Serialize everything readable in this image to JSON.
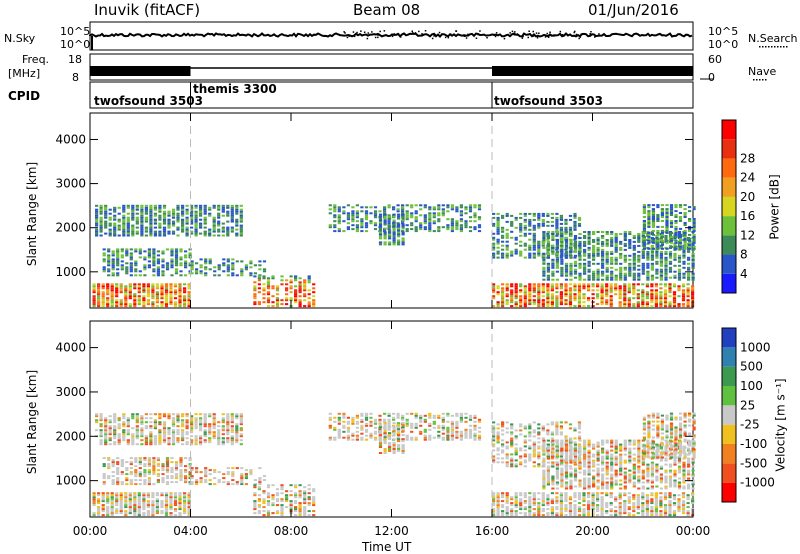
{
  "header": {
    "title_left": "Inuvik (fitACF)",
    "title_center": "Beam 08",
    "title_right": "01/Jun/2016"
  },
  "strips": {
    "nsky_label": "N.Sky",
    "nsky_ticks": [
      "10^5",
      "10^0"
    ],
    "nsearch_label": "N.Search",
    "nsearch_ticks": [
      "10^5",
      "10^0"
    ],
    "freq_label": "Freq.",
    "freq_unit": "[MHz]",
    "freq_ticks": [
      "18",
      "8"
    ],
    "nave_label": "Nave",
    "nave_ticks": [
      "60",
      "0"
    ],
    "cpid_label": "CPID",
    "cpid_segments": [
      {
        "name": "twofsound 3503",
        "start_h": 0,
        "end_h": 4
      },
      {
        "name": "themis 3300",
        "start_h": 4,
        "end_h": 16
      },
      {
        "name": "twofsound 3503",
        "start_h": 16,
        "end_h": 24
      }
    ]
  },
  "chart_data": [
    {
      "type": "heatmap",
      "title": "Power",
      "xlabel": "Time UT",
      "ylabel": "Slant Range [km]",
      "x_ticks": [
        "00:00",
        "04:00",
        "08:00",
        "12:00",
        "16:00",
        "20:00",
        "00:00"
      ],
      "xlim": [
        0,
        24
      ],
      "y_ticks": [
        "1000",
        "2000",
        "3000",
        "4000"
      ],
      "ylim": [
        180,
        4600
      ],
      "colorbar": {
        "label": "Power [dB]",
        "ticks": [
          "4",
          "8",
          "12",
          "16",
          "20",
          "24",
          "28"
        ],
        "range": [
          0,
          30
        ],
        "colors": [
          "#1a1aff",
          "#2a55c8",
          "#3c8a58",
          "#6cc03a",
          "#d6d620",
          "#f0a020",
          "#ff6a10",
          "#e83010",
          "#ff0000"
        ]
      }
    },
    {
      "type": "heatmap",
      "title": "Velocity",
      "xlabel": "Time UT",
      "ylabel": "Slant Range [km]",
      "x_ticks": [
        "00:00",
        "04:00",
        "08:00",
        "12:00",
        "16:00",
        "20:00",
        "00:00"
      ],
      "xlim": [
        0,
        24
      ],
      "y_ticks": [
        "1000",
        "2000",
        "3000",
        "4000"
      ],
      "ylim": [
        180,
        4600
      ],
      "colorbar": {
        "label": "Velocity [m s⁻¹]",
        "ticks": [
          "1000",
          "500",
          "100",
          "25",
          "-25",
          "-100",
          "-500",
          "-1000"
        ],
        "colors": [
          "#2040c0",
          "#3080b0",
          "#3c9a50",
          "#60c040",
          "#c8c8c8",
          "#f0c020",
          "#f08020",
          "#f05020",
          "#ff0000"
        ]
      }
    }
  ],
  "time_label": "Time UT"
}
